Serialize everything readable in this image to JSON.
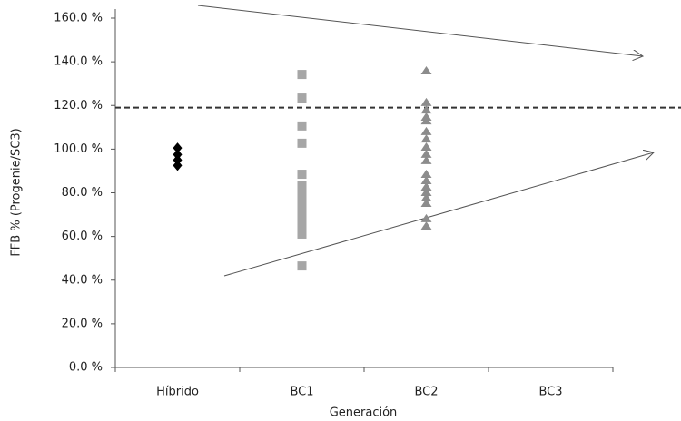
{
  "chart_data": {
    "type": "strip",
    "xlabel": "Generación",
    "ylabel": "FFB % (Progenie/SC3)",
    "categories": [
      "Híbrido",
      "BC1",
      "BC2",
      "BC3"
    ],
    "series": [
      {
        "color": "#000000",
        "marker": "diamond",
        "values": [
          100.5,
          97.5,
          95,
          92.5
        ]
      },
      {
        "color": "#a6a6a6",
        "marker": "square",
        "values": [
          134.2,
          123.4,
          110.6,
          102.7,
          88.5,
          83.5,
          81.5,
          79.4,
          76.9,
          74.4,
          71.9,
          69.4,
          66.5,
          64.4,
          61.1,
          46.5
        ]
      },
      {
        "color": "#8c8c8c",
        "marker": "triangle",
        "values": [
          135.9,
          121.4,
          118.0,
          114.7,
          113.0,
          108.1,
          104.7,
          101.0,
          97.7,
          94.8,
          88.5,
          85.6,
          82.7,
          80.2,
          77.7,
          75.2,
          68.2,
          64.8
        ]
      }
    ],
    "hline": 119,
    "ylim": [
      0,
      160
    ],
    "yticks": [
      {
        "value": 0,
        "label": "0.0 %"
      },
      {
        "value": 20,
        "label": "20.0 %"
      },
      {
        "value": 40,
        "label": "40.0 %"
      },
      {
        "value": 60,
        "label": "60.0 %"
      },
      {
        "value": 80,
        "label": "80.0 %"
      },
      {
        "value": 100,
        "label": "100.0 %"
      },
      {
        "value": 120,
        "label": "120.0 %"
      },
      {
        "value": 140,
        "label": "140.0 %"
      },
      {
        "value": 160,
        "label": "160.0 %"
      }
    ]
  }
}
